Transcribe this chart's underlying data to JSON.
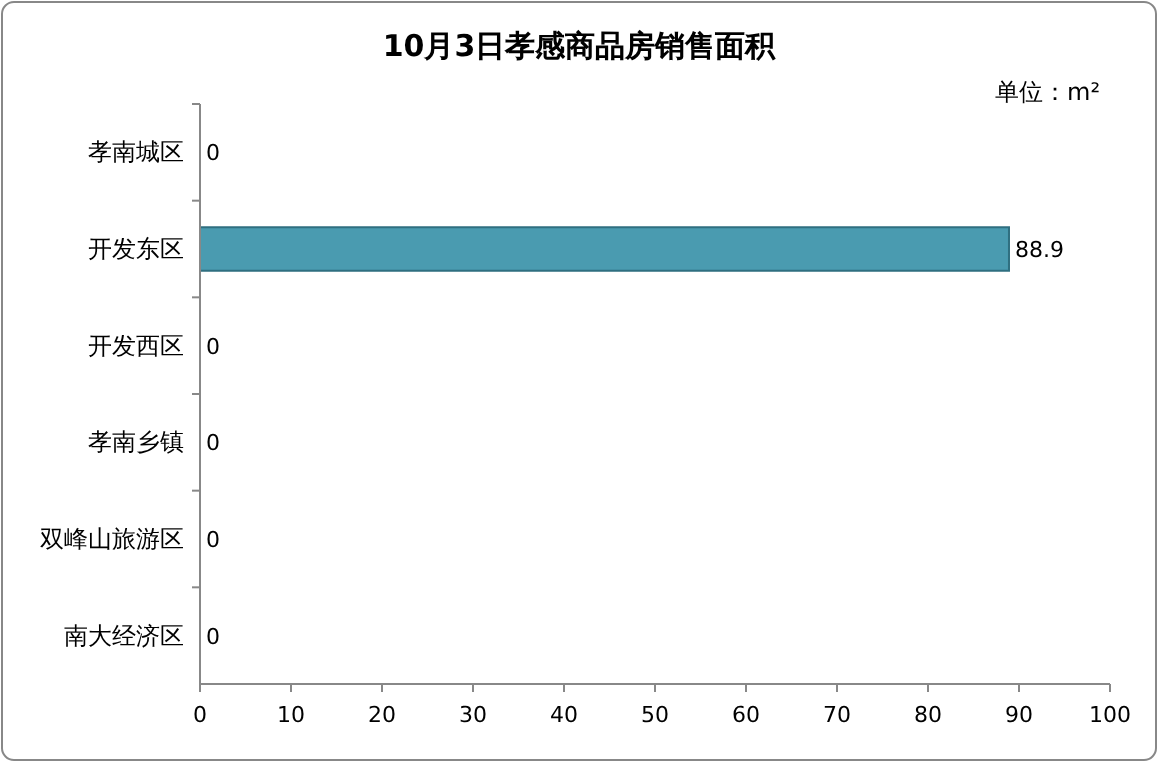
{
  "chart_data": {
    "type": "bar",
    "orientation": "horizontal",
    "title": "10月3日孝感商品房销售面积",
    "categories": [
      "孝南城区",
      "开发东区",
      "开发西区",
      "孝南乡镇",
      "双峰山旅游区",
      "南大经济区"
    ],
    "values": [
      0,
      88.9,
      0,
      0,
      0,
      0
    ],
    "color": "#4a9bb0",
    "xlim": [
      0,
      100
    ],
    "xticks": [
      0,
      10,
      20,
      30,
      40,
      50,
      60,
      70,
      80,
      90,
      100
    ],
    "data_labels": true,
    "grid": false,
    "annotations": [
      "单位：m²"
    ]
  }
}
